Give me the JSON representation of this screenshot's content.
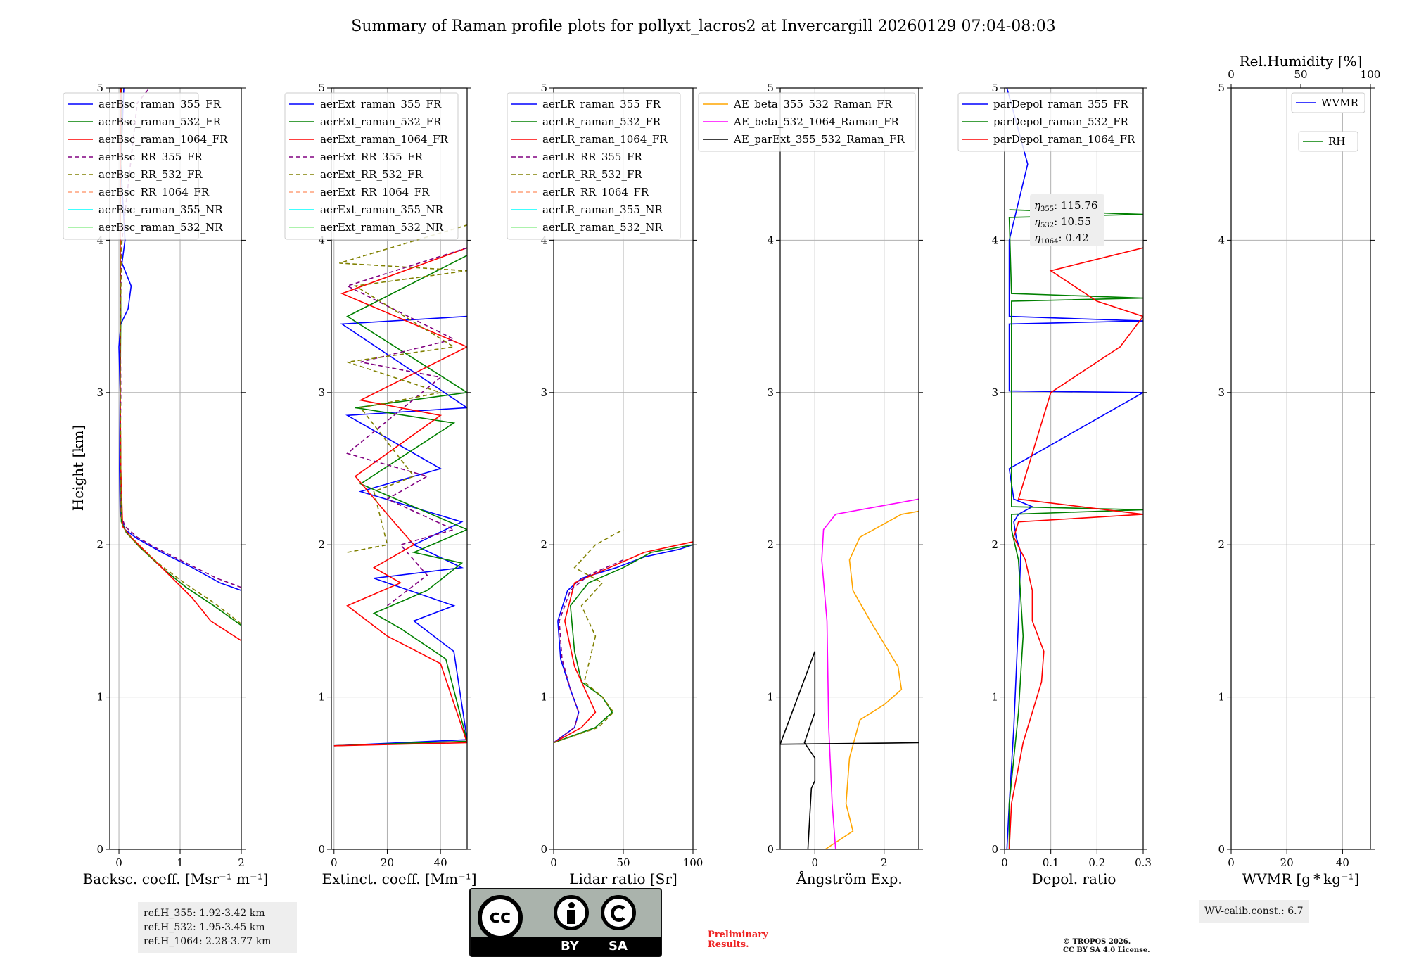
{
  "title": "Summary of Raman profile plots for pollyxt_lacros2 at Invercargill 20260129 07:04-08:03",
  "ylabel": "Height [km]",
  "chart_data": [
    {
      "id": "backscatter",
      "type": "line",
      "xlabel": "Backsc. coeff. [Msr⁻¹ m⁻¹]",
      "xlim": [
        -0.15,
        2.0
      ],
      "xticks": [
        0,
        1,
        2
      ],
      "ylim": [
        0,
        5
      ],
      "yticks": [
        0,
        1,
        2,
        3,
        4,
        5
      ],
      "legend": [
        "aerBsc_raman_355_FR",
        "aerBsc_raman_532_FR",
        "aerBsc_raman_1064_FR",
        "aerBsc_RR_355_FR",
        "aerBsc_RR_532_FR",
        "aerBsc_RR_1064_FR",
        "aerBsc_raman_355_NR",
        "aerBsc_raman_532_NR"
      ],
      "series": [
        {
          "name": "aerBsc_raman_355_FR",
          "color": "#0000ff",
          "dash": false,
          "x": [
            2.0,
            1.65,
            1.2,
            0.7,
            0.3,
            0.1,
            0.02,
            0.01,
            0.02,
            0.0,
            0.03,
            0.15,
            0.2,
            0.05,
            0.1,
            0.03,
            0.08
          ],
          "y": [
            1.7,
            1.75,
            1.85,
            1.95,
            2.04,
            2.1,
            2.2,
            2.5,
            3.0,
            3.3,
            3.45,
            3.55,
            3.7,
            3.85,
            4.0,
            4.5,
            5.0
          ]
        },
        {
          "name": "aerBsc_raman_532_FR",
          "color": "#008000",
          "dash": false,
          "x": [
            2.0,
            1.55,
            1.1,
            0.7,
            0.35,
            0.12,
            0.04,
            0.03,
            0.02,
            0.03,
            0.02,
            0.04
          ],
          "y": [
            1.47,
            1.6,
            1.72,
            1.85,
            1.98,
            2.08,
            2.15,
            2.5,
            3.0,
            3.5,
            4.0,
            5.0
          ]
        },
        {
          "name": "aerBsc_raman_1064_FR",
          "color": "#ff0000",
          "dash": false,
          "x": [
            2.0,
            1.5,
            1.2,
            0.95,
            0.7,
            0.45,
            0.2,
            0.06,
            0.03,
            0.02,
            0.02,
            0.03
          ],
          "y": [
            1.37,
            1.5,
            1.65,
            1.75,
            1.85,
            1.95,
            2.05,
            2.12,
            2.5,
            3.0,
            4.0,
            5.0
          ]
        },
        {
          "name": "aerBsc_RR_355_FR",
          "color": "#800080",
          "dash": true,
          "x": [
            2.0,
            1.6,
            1.1,
            0.65,
            0.3,
            0.1,
            0.03,
            0.02,
            0.03,
            0.02,
            0.05,
            0.3,
            0.5
          ],
          "y": [
            1.72,
            1.78,
            1.88,
            1.97,
            2.05,
            2.12,
            2.2,
            2.6,
            3.0,
            3.5,
            4.0,
            4.9,
            5.0
          ]
        },
        {
          "name": "aerBsc_RR_532_FR",
          "color": "#808000",
          "dash": true,
          "x": [
            2.0,
            1.55,
            1.1,
            0.7,
            0.35,
            0.12,
            0.04,
            0.03,
            0.02,
            0.04
          ],
          "y": [
            1.48,
            1.62,
            1.74,
            1.86,
            1.98,
            2.08,
            2.15,
            2.5,
            3.2,
            4.0
          ]
        }
      ]
    },
    {
      "id": "extinction",
      "type": "line",
      "xlabel": "Extinct. coeff. [Mm⁻¹]",
      "xlim": [
        -1,
        50
      ],
      "xticks": [
        0,
        20,
        40
      ],
      "ylim": [
        0,
        5
      ],
      "yticks": [
        0,
        1,
        2,
        3,
        4,
        5
      ],
      "legend": [
        "aerExt_raman_355_FR",
        "aerExt_raman_532_FR",
        "aerExt_raman_1064_FR",
        "aerExt_RR_355_FR",
        "aerExt_RR_532_FR",
        "aerExt_RR_1064_FR",
        "aerExt_raman_355_NR",
        "aerExt_raman_532_NR"
      ],
      "series": [
        {
          "name": "aerExt_raman_355_FR",
          "color": "#0000ff",
          "dash": false,
          "x": [
            0,
            50,
            45,
            30,
            45,
            15,
            48,
            30,
            48,
            10,
            40,
            5,
            50,
            3,
            50
          ],
          "y": [
            0.68,
            0.72,
            1.3,
            1.5,
            1.6,
            1.78,
            1.85,
            2.0,
            2.15,
            2.35,
            2.5,
            2.85,
            2.9,
            3.45,
            3.5
          ]
        },
        {
          "name": "aerExt_raman_532_FR",
          "color": "#008000",
          "dash": false,
          "x": [
            0,
            50,
            42,
            25,
            15,
            35,
            48,
            30,
            50,
            10,
            45,
            8,
            50,
            5,
            50
          ],
          "y": [
            0.68,
            0.71,
            1.25,
            1.45,
            1.55,
            1.7,
            1.88,
            1.95,
            2.1,
            2.4,
            2.8,
            2.9,
            3.0,
            3.5,
            3.9
          ]
        },
        {
          "name": "aerExt_raman_1064_FR",
          "color": "#ff0000",
          "dash": false,
          "x": [
            0,
            50,
            40,
            20,
            5,
            25,
            15,
            30,
            20,
            8,
            40,
            10,
            50,
            3,
            50
          ],
          "y": [
            0.68,
            0.7,
            1.22,
            1.4,
            1.6,
            1.75,
            1.85,
            2.0,
            2.2,
            2.45,
            2.85,
            2.95,
            3.3,
            3.65,
            3.95
          ]
        },
        {
          "name": "aerExt_RR_355_FR",
          "color": "#800080",
          "dash": true,
          "x": [
            20,
            35,
            25,
            45,
            20,
            35,
            5,
            40,
            10,
            45,
            5,
            50
          ],
          "y": [
            1.6,
            1.8,
            2.0,
            2.1,
            2.3,
            2.45,
            2.6,
            3.1,
            3.2,
            3.35,
            3.7,
            3.95
          ]
        },
        {
          "name": "aerExt_RR_532_FR",
          "color": "#808000",
          "dash": true,
          "x": [
            5,
            20,
            15,
            30,
            10,
            40,
            5,
            45,
            8,
            50,
            2,
            50
          ],
          "y": [
            1.95,
            2.0,
            2.35,
            2.45,
            2.9,
            3.0,
            3.2,
            3.3,
            3.7,
            3.8,
            3.85,
            4.1
          ]
        }
      ]
    },
    {
      "id": "lidar_ratio",
      "type": "line",
      "xlabel": "Lidar ratio [Sr]",
      "xlim": [
        0,
        100
      ],
      "xticks": [
        0,
        50,
        100
      ],
      "ylim": [
        0,
        5
      ],
      "yticks": [
        0,
        1,
        2,
        3,
        4,
        5
      ],
      "legend": [
        "aerLR_raman_355_FR",
        "aerLR_raman_532_FR",
        "aerLR_raman_1064_FR",
        "aerLR_RR_355_FR",
        "aerLR_RR_532_FR",
        "aerLR_RR_1064_FR",
        "aerLR_raman_355_NR",
        "aerLR_raman_532_NR"
      ],
      "series": [
        {
          "name": "aerLR_raman_355_FR",
          "color": "#0000ff",
          "dash": false,
          "x": [
            0,
            15,
            18,
            12,
            5,
            3,
            10,
            20,
            45,
            65,
            90,
            100
          ],
          "y": [
            0.7,
            0.8,
            0.9,
            1.05,
            1.25,
            1.5,
            1.7,
            1.78,
            1.85,
            1.92,
            1.97,
            2.0
          ]
        },
        {
          "name": "aerLR_raman_532_FR",
          "color": "#008000",
          "dash": false,
          "x": [
            0,
            30,
            42,
            35,
            20,
            15,
            12,
            25,
            50,
            70,
            100
          ],
          "y": [
            0.7,
            0.8,
            0.9,
            1.0,
            1.1,
            1.3,
            1.6,
            1.75,
            1.85,
            1.95,
            2.0
          ]
        },
        {
          "name": "aerLR_raman_1064_FR",
          "color": "#ff0000",
          "dash": false,
          "x": [
            0,
            20,
            30,
            25,
            15,
            8,
            15,
            40,
            65,
            100
          ],
          "y": [
            0.7,
            0.8,
            0.9,
            1.0,
            1.2,
            1.5,
            1.75,
            1.85,
            1.95,
            2.02
          ]
        },
        {
          "name": "aerLR_RR_355_FR",
          "color": "#800080",
          "dash": true,
          "x": [
            0,
            15,
            18,
            12,
            6,
            4,
            12,
            25,
            50
          ],
          "y": [
            0.7,
            0.8,
            0.9,
            1.05,
            1.25,
            1.5,
            1.7,
            1.8,
            1.9
          ]
        },
        {
          "name": "aerLR_RR_532_FR",
          "color": "#808000",
          "dash": true,
          "x": [
            0,
            32,
            43,
            35,
            22,
            30,
            20,
            35,
            15,
            30,
            50
          ],
          "y": [
            0.7,
            0.8,
            0.9,
            1.0,
            1.1,
            1.4,
            1.6,
            1.75,
            1.85,
            2.0,
            2.1
          ]
        }
      ]
    },
    {
      "id": "angstrom",
      "type": "line",
      "xlabel": "Ångström Exp.",
      "xlim": [
        -1,
        3
      ],
      "xticks": [
        0,
        2
      ],
      "ylim": [
        0,
        5
      ],
      "yticks": [
        0,
        1,
        2,
        3,
        4,
        5
      ],
      "legend": [
        "AE_beta_355_532_Raman_FR",
        "AE_beta_532_1064_Raman_FR",
        "AE_parExt_355_532_Raman_FR"
      ],
      "series": [
        {
          "name": "AE_beta_355_532_Raman_FR",
          "color": "#ffa500",
          "dash": false,
          "x": [
            0.3,
            1.1,
            0.9,
            1.0,
            1.3,
            2.0,
            2.5,
            2.4,
            1.6,
            1.1,
            1.0,
            1.3,
            2.5,
            3.0
          ],
          "y": [
            0.0,
            0.12,
            0.3,
            0.6,
            0.85,
            0.95,
            1.05,
            1.2,
            1.5,
            1.7,
            1.9,
            2.05,
            2.2,
            2.22
          ]
        },
        {
          "name": "AE_beta_532_1064_Raman_FR",
          "color": "#ff00ff",
          "dash": false,
          "x": [
            0.6,
            0.5,
            0.4,
            0.35,
            0.2,
            0.25,
            0.6,
            3.0
          ],
          "y": [
            0.0,
            0.3,
            0.8,
            1.5,
            1.9,
            2.1,
            2.2,
            2.3
          ]
        },
        {
          "name": "AE_parExt_355_532_Raman_FR",
          "color": "#000000",
          "dash": false,
          "x": [
            -0.2,
            -0.1,
            0.0,
            0.0,
            -0.3,
            0.0,
            0.0,
            -1.0,
            3.0
          ],
          "y": [
            0.0,
            0.4,
            0.45,
            0.6,
            0.7,
            0.9,
            1.3,
            0.69,
            0.7
          ]
        }
      ]
    },
    {
      "id": "depol",
      "type": "line",
      "xlabel": "Depol. ratio",
      "xlim": [
        0,
        0.3
      ],
      "xticks": [
        0.0,
        0.1,
        0.2,
        0.3
      ],
      "ylim": [
        0,
        5
      ],
      "yticks": [
        0,
        1,
        2,
        3,
        4,
        5
      ],
      "legend": [
        "parDepol_raman_355_FR",
        "parDepol_raman_532_FR",
        "parDepol_raman_1064_FR"
      ],
      "series": [
        {
          "name": "parDepol_raman_355_FR",
          "color": "#0000ff",
          "dash": false,
          "x": [
            0.005,
            0.01,
            0.02,
            0.03,
            0.035,
            0.025,
            0.02,
            0.03,
            0.06,
            0.02,
            0.01,
            0.3,
            0.01,
            0.01,
            0.3,
            0.01,
            0.01,
            0.05,
            0.005
          ],
          "y": [
            0.0,
            0.3,
            0.8,
            1.5,
            1.95,
            2.05,
            2.15,
            2.2,
            2.25,
            2.3,
            2.5,
            3.0,
            3.01,
            3.45,
            3.47,
            3.5,
            4.0,
            4.5,
            5.0
          ]
        },
        {
          "name": "parDepol_raman_532_FR",
          "color": "#008000",
          "dash": false,
          "x": [
            0.01,
            0.01,
            0.03,
            0.04,
            0.03,
            0.015,
            0.015,
            0.3,
            0.015,
            0.015,
            0.3,
            0.015,
            0.01,
            0.3,
            0.01
          ],
          "y": [
            0.0,
            0.3,
            0.9,
            1.4,
            1.9,
            2.1,
            2.2,
            2.23,
            2.25,
            3.6,
            3.62,
            3.65,
            4.15,
            4.17,
            4.2
          ]
        },
        {
          "name": "parDepol_raman_1064_FR",
          "color": "#ff0000",
          "dash": false,
          "x": [
            0.01,
            0.015,
            0.04,
            0.08,
            0.085,
            0.06,
            0.06,
            0.045,
            0.02,
            0.03,
            0.3,
            0.03,
            0.1,
            0.15,
            0.2,
            0.25,
            0.3,
            0.2,
            0.15,
            0.1,
            0.3
          ],
          "y": [
            0.0,
            0.3,
            0.7,
            1.1,
            1.3,
            1.5,
            1.7,
            1.9,
            2.05,
            2.15,
            2.2,
            2.3,
            3.0,
            3.1,
            3.2,
            3.3,
            3.5,
            3.6,
            3.7,
            3.8,
            3.95
          ]
        }
      ]
    },
    {
      "id": "wvmr",
      "type": "line",
      "xlabel": "WVMR [g * kg⁻¹]",
      "xlim": [
        0,
        50
      ],
      "xticks": [
        0,
        20,
        40
      ],
      "top_xlabel": "Rel.Humidity [%]",
      "top_xticks": [
        0,
        50,
        100
      ],
      "ylim": [
        0,
        5
      ],
      "yticks": [
        0,
        1,
        2,
        3,
        4,
        5
      ],
      "legend": [
        "WVMR",
        "RH"
      ],
      "series": []
    }
  ],
  "annotations": {
    "eta_355_label": "η",
    "eta_355_sub": "355",
    "eta_355_value": ": 115.76",
    "eta_532_label": "η",
    "eta_532_sub": "532",
    "eta_532_value": ": 10.55",
    "eta_1064_label": "η",
    "eta_1064_sub": "1064",
    "eta_1064_value": ": 0.42",
    "ref_h_355": "ref.H_355: 1.92-3.42 km",
    "ref_h_532": "ref.H_532: 1.95-3.45 km",
    "ref_h_1064": "ref.H_1064: 2.28-3.77 km",
    "wv_calib": "WV-calib.const.: 6.7",
    "preliminary_1": "Preliminary",
    "preliminary_2": "Results.",
    "copyright_1": "© TROPOS 2026.",
    "copyright_2": "CC BY SA 4.0 License."
  },
  "logo": {
    "cc": "cc",
    "by": "BY",
    "sa": "SA"
  },
  "legend_styles": {
    "#0000ff": "solid",
    "#008000": "solid",
    "#ff0000": "solid",
    "#800080": "dashed",
    "#808000": "dashed",
    "#ffa07a": "dashed",
    "#00ffff": "solid-light",
    "#90ee90": "solid-light"
  }
}
